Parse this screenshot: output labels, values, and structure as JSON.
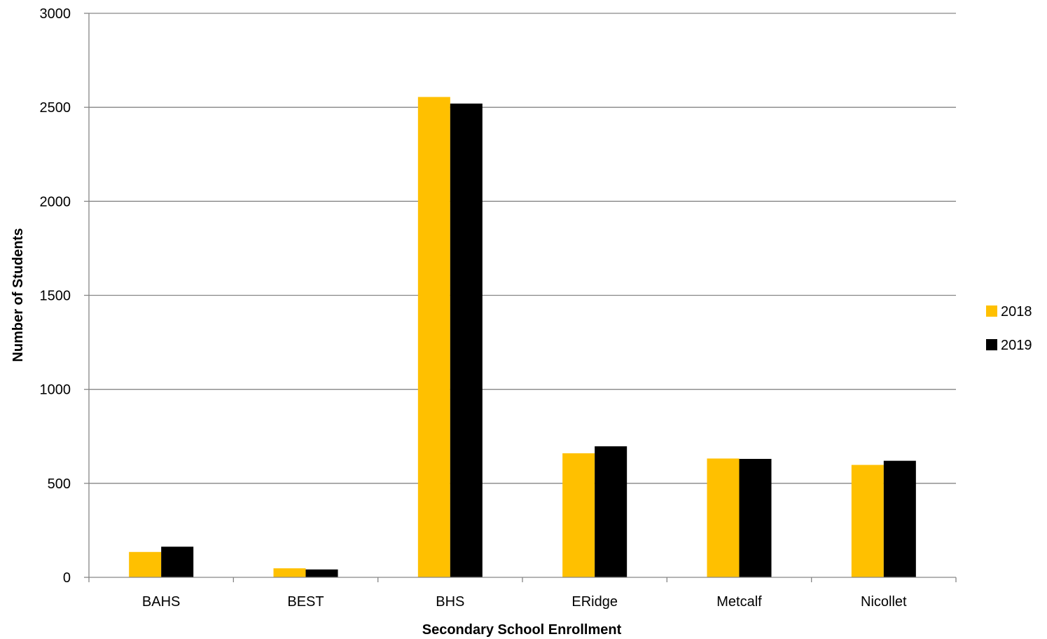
{
  "chart_data": {
    "type": "bar",
    "categories": [
      "BAHS",
      "BEST",
      "BHS",
      "ERidge",
      "Metcalf",
      "Nicollet"
    ],
    "series": [
      {
        "name": "2018",
        "color": "#FFC000",
        "values": [
          135,
          48,
          2555,
          660,
          632,
          598
        ]
      },
      {
        "name": "2019",
        "color": "#000000",
        "values": [
          163,
          42,
          2520,
          697,
          630,
          620
        ]
      }
    ],
    "xlabel": "Secondary School Enrollment",
    "ylabel": "Number of Students",
    "ylim": [
      0,
      3000
    ],
    "yticks": [
      0,
      500,
      1000,
      1500,
      2000,
      2500,
      3000
    ],
    "grid": true,
    "legend_position": "right"
  }
}
